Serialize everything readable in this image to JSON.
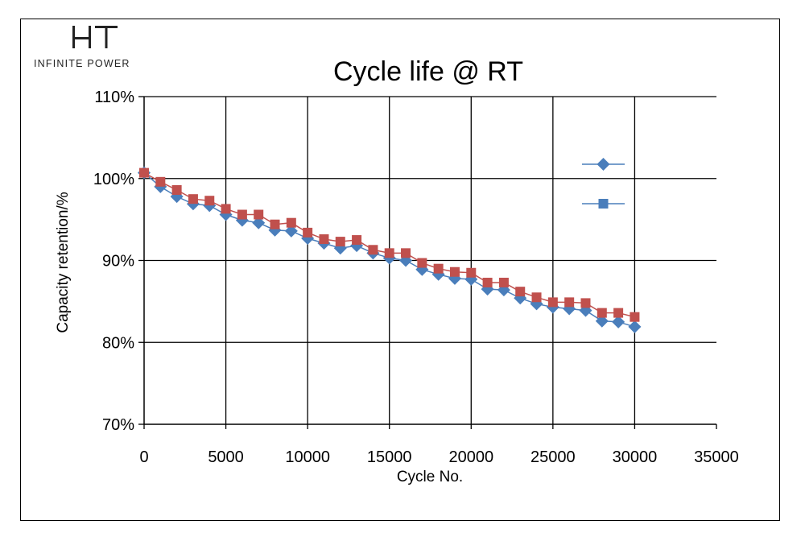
{
  "logo": {
    "mark_text": "HT",
    "tagline": "INFINITE POWER"
  },
  "chart_data": {
    "type": "line",
    "title": "Cycle life @ RT",
    "xlabel": "Cycle No.",
    "ylabel": "Capacity retention/%",
    "xlim": [
      0,
      35000
    ],
    "ylim": [
      70,
      110
    ],
    "x_ticks": [
      0,
      5000,
      10000,
      15000,
      20000,
      25000,
      30000,
      35000
    ],
    "x_tick_labels": [
      "0",
      "5000",
      "10000",
      "15000",
      "20000",
      "25000",
      "30000",
      "35000"
    ],
    "y_ticks": [
      70,
      80,
      90,
      100,
      110
    ],
    "y_tick_labels": [
      "70%",
      "80%",
      "90%",
      "100%",
      "110%"
    ],
    "grid": true,
    "legend_position": "right",
    "series": [
      {
        "marker": "diamond",
        "color": "#4a7ebb",
        "x": [
          0,
          1000,
          2000,
          3000,
          4000,
          5000,
          6000,
          7000,
          8000,
          9000,
          10000,
          11000,
          12000,
          13000,
          14000,
          15000,
          16000,
          17000,
          18000,
          19000,
          20000,
          21000,
          22000,
          23000,
          24000,
          25000,
          26000,
          27000,
          28000,
          29000,
          30000
        ],
        "values": [
          100.7,
          99.0,
          97.8,
          96.9,
          96.7,
          95.6,
          94.9,
          94.6,
          93.7,
          93.6,
          92.7,
          92.1,
          91.5,
          91.8,
          90.9,
          90.3,
          90.0,
          88.9,
          88.3,
          87.8,
          87.7,
          86.5,
          86.4,
          85.4,
          84.7,
          84.3,
          84.1,
          83.9,
          82.6,
          82.5,
          81.9
        ]
      },
      {
        "marker": "square",
        "color": "#c0504d",
        "legend_marker_color": "#4a7ebb",
        "x": [
          0,
          1000,
          2000,
          3000,
          4000,
          5000,
          6000,
          7000,
          8000,
          9000,
          10000,
          11000,
          12000,
          13000,
          14000,
          15000,
          16000,
          17000,
          18000,
          19000,
          20000,
          21000,
          22000,
          23000,
          24000,
          25000,
          26000,
          27000,
          28000,
          29000,
          30000
        ],
        "values": [
          100.7,
          99.6,
          98.6,
          97.5,
          97.3,
          96.3,
          95.6,
          95.6,
          94.4,
          94.6,
          93.4,
          92.6,
          92.3,
          92.5,
          91.3,
          90.9,
          90.9,
          89.7,
          89.0,
          88.6,
          88.5,
          87.3,
          87.3,
          86.2,
          85.5,
          84.9,
          84.9,
          84.8,
          83.6,
          83.6,
          83.1
        ]
      }
    ]
  }
}
